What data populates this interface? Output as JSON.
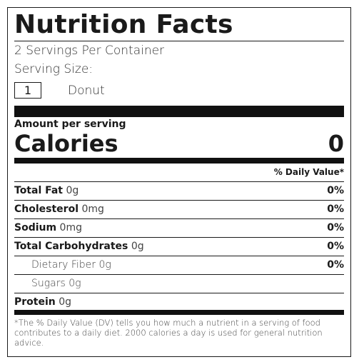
{
  "title": "Nutrition Facts",
  "servings_per_container": "2 Servings Per Container",
  "serving_size_label": "Serving Size:",
  "serving_quantity": "1",
  "serving_unit": "Donut",
  "amount_per_serving": "Amount per serving",
  "calories_label": "Calories",
  "calories_value": "0",
  "daily_value_header": "% Daily Value*",
  "nutrients": [
    {
      "name": "Total Fat",
      "amount": "0g",
      "dv": "0%"
    },
    {
      "name": "Cholesterol",
      "amount": "0mg",
      "dv": "0%"
    },
    {
      "name": "Sodium",
      "amount": "0mg",
      "dv": "0%"
    },
    {
      "name": "Total Carbohydrates",
      "amount": "0g",
      "dv": "0%"
    },
    {
      "name": "Dietary Fiber",
      "amount": "0g",
      "dv": "0%"
    },
    {
      "name": "Sugars",
      "amount": "0g",
      "dv": ""
    },
    {
      "name": "Protein",
      "amount": "0g",
      "dv": ""
    }
  ],
  "footnote": "*The % Daily Value (DV) tells you how much a nutrient in a serving of food contributes to a daily diet. 2000 calories a day is used for general nutrition advice."
}
